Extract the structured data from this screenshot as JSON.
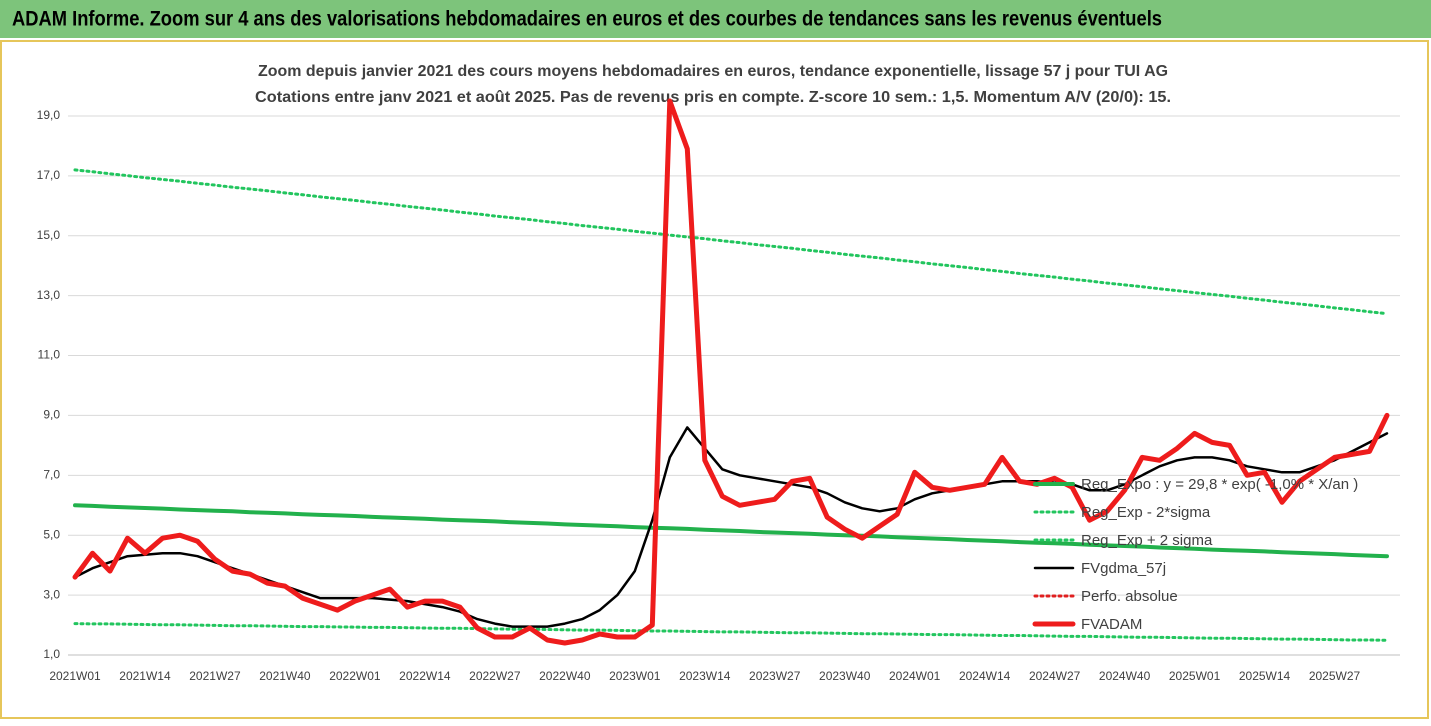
{
  "chart_data": {
    "type": "line",
    "title": "ADAM Informe. Zoom sur 4 ans des valorisations hebdomadaires en euros et des courbes de tendances sans les revenus éventuels",
    "subtitle": [
      "Zoom depuis janvier 2021 des cours moyens hebdomadaires en euros, tendance exponentielle, lissage 57 j pour TUI AG",
      "Cotations entre janv 2021 et août 2025.  Pas de revenus pris en compte. Z-score 10 sem.: 1,5. Momentum A/V (20/0): 15."
    ],
    "categories": [
      "2021W01",
      null,
      null,
      null,
      "2021W14",
      null,
      null,
      null,
      "2021W27",
      null,
      null,
      null,
      "2021W40",
      null,
      null,
      null,
      "2022W01",
      null,
      null,
      null,
      "2022W14",
      null,
      null,
      null,
      "2022W27",
      null,
      null,
      null,
      "2022W40",
      null,
      null,
      null,
      "2023W01",
      null,
      null,
      null,
      "2023W14",
      null,
      null,
      null,
      "2023W27",
      null,
      null,
      null,
      "2023W40",
      null,
      null,
      null,
      "2024W01",
      null,
      null,
      null,
      "2024W14",
      null,
      null,
      null,
      "2024W27",
      null,
      null,
      null,
      "2024W40",
      null,
      null,
      null,
      "2025W01",
      null,
      null,
      null,
      "2025W14",
      null,
      null,
      null,
      "2025W27",
      null,
      null,
      null
    ],
    "ylim": [
      1,
      19.7
    ],
    "yticks": [
      {
        "value": 1,
        "label": "1,0"
      },
      {
        "value": 3,
        "label": "3,0"
      },
      {
        "value": 5,
        "label": "5,0"
      },
      {
        "value": 7,
        "label": "7,0"
      },
      {
        "value": 9,
        "label": "9,0"
      },
      {
        "value": 11,
        "label": "11,0"
      },
      {
        "value": 13,
        "label": "13,0"
      },
      {
        "value": 15,
        "label": "15,0"
      },
      {
        "value": 17,
        "label": "17,0"
      },
      {
        "value": 19,
        "label": "19,0"
      }
    ],
    "grid": true,
    "legend": "right",
    "series": [
      {
        "name": "Reg_Expo : y = 29,8 * exp( -1,0% * X/an )",
        "color": "#22b14c",
        "style": "solid",
        "values": [
          6.0,
          5.98,
          5.95,
          5.93,
          5.91,
          5.89,
          5.86,
          5.84,
          5.82,
          5.8,
          5.77,
          5.75,
          5.73,
          5.7,
          5.68,
          5.66,
          5.64,
          5.61,
          5.59,
          5.57,
          5.55,
          5.52,
          5.5,
          5.48,
          5.46,
          5.43,
          5.41,
          5.39,
          5.36,
          5.34,
          5.32,
          5.3,
          5.27,
          5.25,
          5.23,
          5.21,
          5.18,
          5.16,
          5.14,
          5.11,
          5.09,
          5.07,
          5.05,
          5.02,
          5.0,
          4.98,
          4.96,
          4.93,
          4.91,
          4.89,
          4.87,
          4.84,
          4.82,
          4.8,
          4.77,
          4.75,
          4.73,
          4.71,
          4.68,
          4.66,
          4.64,
          4.62,
          4.59,
          4.57,
          4.55,
          4.52,
          4.5,
          4.48,
          4.46,
          4.43,
          4.41,
          4.39,
          4.37,
          4.34,
          4.32,
          4.3
        ]
      },
      {
        "name": "Reg_Exp - 2*sigma",
        "color": "#22c55e",
        "style": "dotted",
        "values": [
          2.05,
          2.04,
          2.04,
          2.03,
          2.02,
          2.01,
          2.01,
          2.0,
          1.99,
          1.98,
          1.98,
          1.97,
          1.96,
          1.95,
          1.95,
          1.94,
          1.93,
          1.92,
          1.92,
          1.91,
          1.9,
          1.89,
          1.89,
          1.88,
          1.87,
          1.86,
          1.86,
          1.85,
          1.84,
          1.83,
          1.83,
          1.82,
          1.81,
          1.8,
          1.8,
          1.79,
          1.78,
          1.77,
          1.77,
          1.76,
          1.75,
          1.74,
          1.74,
          1.73,
          1.72,
          1.71,
          1.71,
          1.7,
          1.69,
          1.68,
          1.68,
          1.67,
          1.66,
          1.65,
          1.65,
          1.64,
          1.63,
          1.62,
          1.62,
          1.61,
          1.6,
          1.59,
          1.59,
          1.58,
          1.57,
          1.56,
          1.56,
          1.55,
          1.54,
          1.53,
          1.53,
          1.52,
          1.51,
          1.5,
          1.5,
          1.49
        ]
      },
      {
        "name": "Reg_Exp + 2 sigma",
        "color": "#22c55e",
        "style": "dotted",
        "values": [
          17.2,
          17.14,
          17.07,
          17.01,
          16.94,
          16.88,
          16.82,
          16.75,
          16.69,
          16.62,
          16.56,
          16.5,
          16.43,
          16.37,
          16.3,
          16.24,
          16.18,
          16.11,
          16.05,
          15.98,
          15.92,
          15.86,
          15.79,
          15.73,
          15.66,
          15.6,
          15.54,
          15.47,
          15.41,
          15.34,
          15.28,
          15.22,
          15.15,
          15.09,
          15.02,
          14.96,
          14.9,
          14.83,
          14.77,
          14.7,
          14.64,
          14.58,
          14.51,
          14.45,
          14.38,
          14.32,
          14.26,
          14.19,
          14.13,
          14.06,
          14.0,
          13.94,
          13.87,
          13.81,
          13.74,
          13.68,
          13.62,
          13.55,
          13.49,
          13.42,
          13.36,
          13.3,
          13.23,
          13.17,
          13.1,
          13.04,
          12.98,
          12.91,
          12.85,
          12.78,
          12.72,
          12.66,
          12.59,
          12.53,
          12.46,
          12.4
        ]
      },
      {
        "name": "FVgdma_57j",
        "color": "#000000",
        "style": "solid",
        "values": [
          3.6,
          3.9,
          4.1,
          4.3,
          4.35,
          4.4,
          4.4,
          4.3,
          4.1,
          3.9,
          3.7,
          3.5,
          3.3,
          3.1,
          2.9,
          2.9,
          2.9,
          2.9,
          2.85,
          2.8,
          2.7,
          2.6,
          2.45,
          2.2,
          2.05,
          1.95,
          1.95,
          1.95,
          2.05,
          2.2,
          2.5,
          3.0,
          3.8,
          5.5,
          7.6,
          8.6,
          7.9,
          7.2,
          7.0,
          6.9,
          6.8,
          6.7,
          6.6,
          6.4,
          6.1,
          5.9,
          5.8,
          5.9,
          6.2,
          6.4,
          6.5,
          6.6,
          6.7,
          6.8,
          6.8,
          6.8,
          6.75,
          6.7,
          6.5,
          6.5,
          6.7,
          7.0,
          7.3,
          7.5,
          7.6,
          7.6,
          7.5,
          7.3,
          7.2,
          7.1,
          7.1,
          7.3,
          7.5,
          7.8,
          8.1,
          8.4
        ]
      },
      {
        "name": "Perfo. absolue",
        "color": "#e02020",
        "style": "dotted",
        "values": [
          null,
          null,
          null,
          null,
          null,
          null,
          null,
          null,
          null,
          null,
          null,
          null,
          null,
          null,
          null,
          null,
          null,
          null,
          null,
          null,
          null,
          null,
          null,
          null,
          null,
          null,
          null,
          null,
          null,
          null,
          null,
          null,
          null,
          null,
          null,
          null,
          null,
          null,
          null,
          null,
          null,
          null,
          null,
          null,
          null,
          null,
          null,
          null,
          null,
          null,
          null,
          null,
          null,
          null,
          null,
          null,
          null,
          null,
          null,
          null,
          null,
          null,
          null,
          null,
          null,
          null,
          null,
          null,
          null,
          null,
          null,
          null,
          null,
          null,
          null,
          null
        ]
      },
      {
        "name": "FVADAM",
        "color": "#ee1c1c",
        "style": "bold",
        "values": [
          3.6,
          4.4,
          3.8,
          4.9,
          4.4,
          4.9,
          5.0,
          4.8,
          4.2,
          3.8,
          3.7,
          3.4,
          3.3,
          2.9,
          2.7,
          2.5,
          2.8,
          3.0,
          3.2,
          2.6,
          2.8,
          2.8,
          2.6,
          1.9,
          1.6,
          1.6,
          1.9,
          1.5,
          1.4,
          1.5,
          1.7,
          1.6,
          1.6,
          2.0,
          19.5,
          17.9,
          7.5,
          6.3,
          6.0,
          6.1,
          6.2,
          6.8,
          6.9,
          5.6,
          5.2,
          4.9,
          5.3,
          5.7,
          7.1,
          6.6,
          6.5,
          6.6,
          6.7,
          7.6,
          6.8,
          6.7,
          6.9,
          6.6,
          5.5,
          5.8,
          6.5,
          7.6,
          7.5,
          7.9,
          8.4,
          8.1,
          8.0,
          7.0,
          7.1,
          6.1,
          6.8,
          7.2,
          7.6,
          7.7,
          7.8,
          9.0
        ]
      }
    ]
  }
}
